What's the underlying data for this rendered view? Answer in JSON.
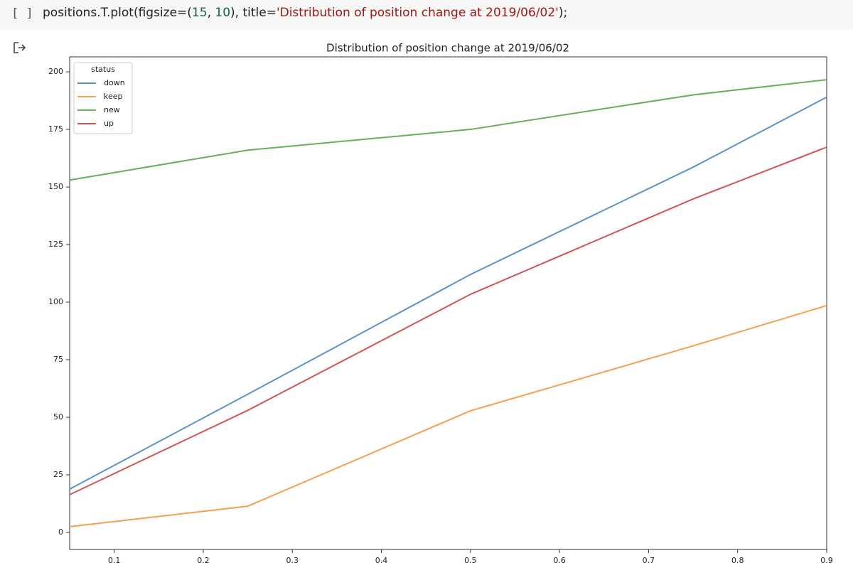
{
  "cell": {
    "prompt": "[ ]",
    "code": [
      {
        "text": "positions.T.plot(figsize=(",
        "color": "#212121"
      },
      {
        "text": "15",
        "color": "#116644"
      },
      {
        "text": ", ",
        "color": "#212121"
      },
      {
        "text": "10",
        "color": "#116644"
      },
      {
        "text": "), title=",
        "color": "#212121"
      },
      {
        "text": "'Distribution of position change at 2019/06/02'",
        "color": "#a31515"
      },
      {
        "text": ");",
        "color": "#212121"
      }
    ]
  },
  "chart_data": {
    "type": "line",
    "title": "Distribution of position change at 2019/06/02",
    "x": [
      0.05,
      0.25,
      0.5,
      0.75,
      0.9
    ],
    "series": [
      {
        "name": "down",
        "color": "#5b93c8",
        "values": [
          18.8,
          60,
          112,
          158.6,
          189
        ]
      },
      {
        "name": "keep",
        "color": "#f5a04e",
        "values": [
          2.5,
          11.4,
          52.8,
          81,
          98.5
        ]
      },
      {
        "name": "new",
        "color": "#69ad5c",
        "values": [
          153,
          166,
          175,
          190,
          196.6
        ]
      },
      {
        "name": "up",
        "color": "#d35553",
        "values": [
          16.4,
          53,
          103.4,
          144.8,
          167.3
        ]
      }
    ],
    "xlim": [
      0.05,
      0.9
    ],
    "ylim": [
      -7.4,
      206.5
    ],
    "xticks": [
      0.1,
      0.2,
      0.3,
      0.4,
      0.5,
      0.6,
      0.7,
      0.8,
      0.9
    ],
    "yticks": [
      0,
      25,
      50,
      75,
      100,
      125,
      150,
      175,
      200
    ],
    "legend_title": "status",
    "legend": "upper left",
    "grid": false
  }
}
